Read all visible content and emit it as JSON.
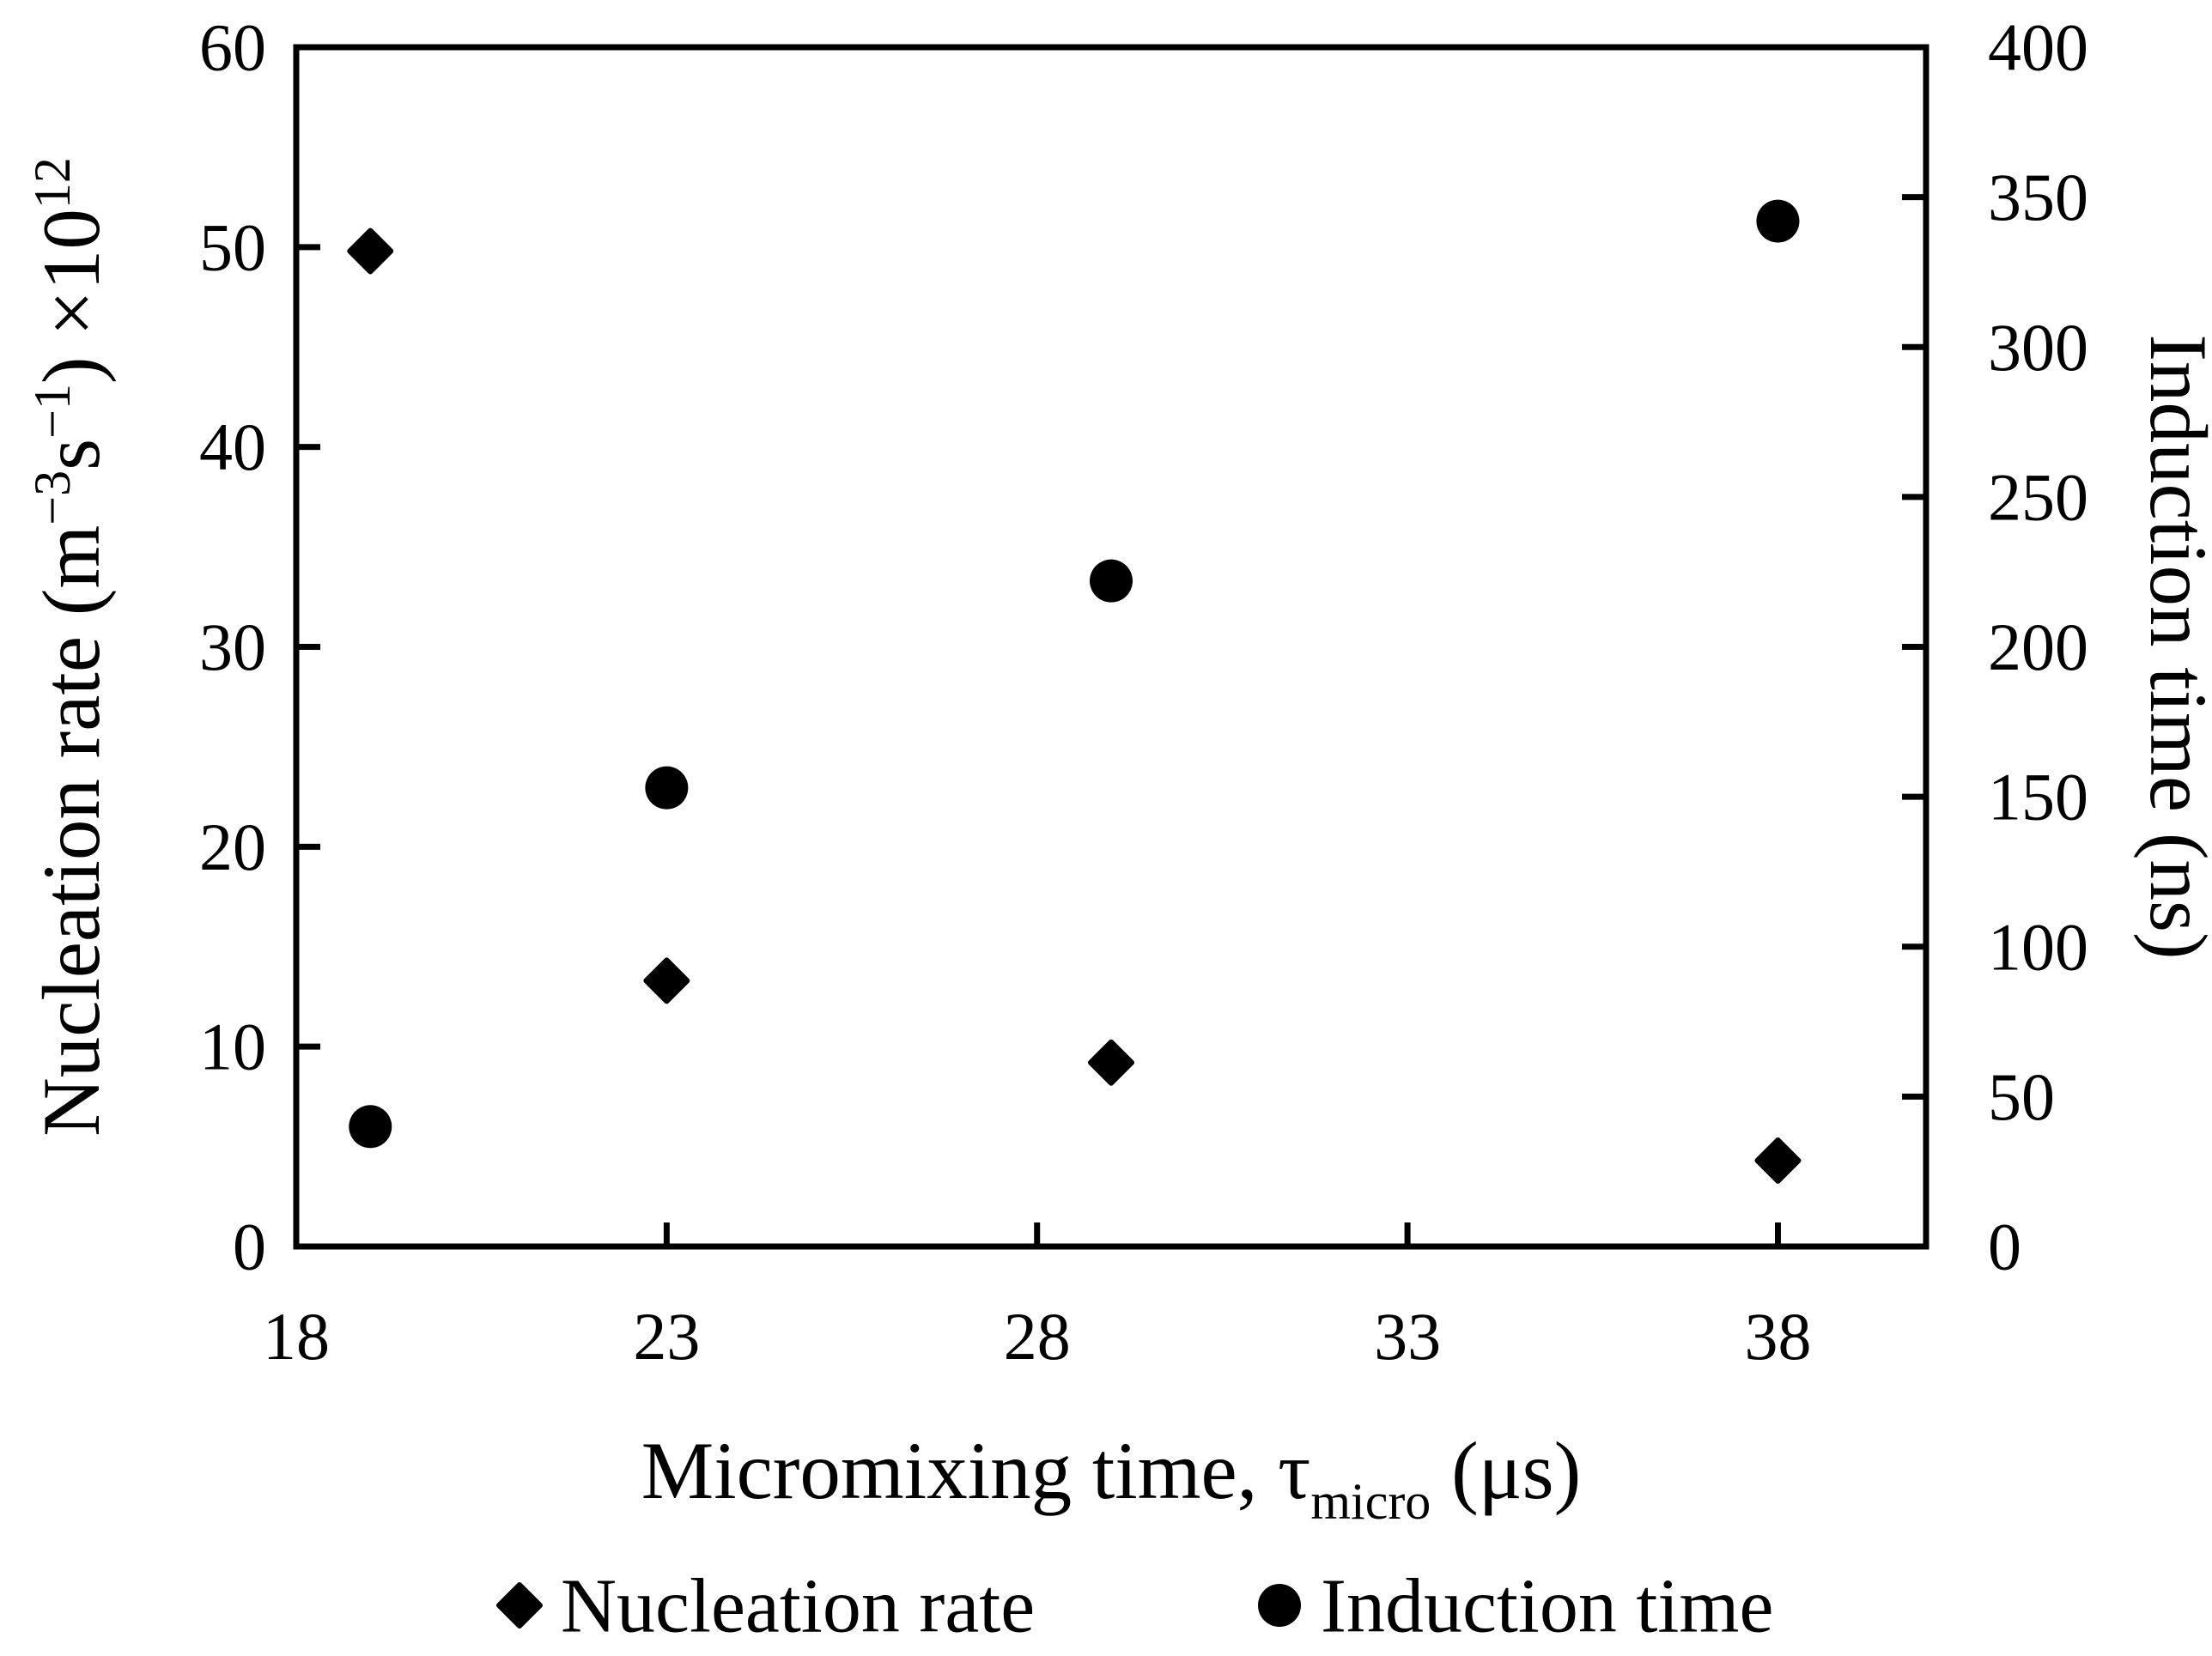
{
  "figure": {
    "background_color": "#ffffff",
    "ink_color": "#000000"
  },
  "chart_data": {
    "type": "scatter",
    "x_values": [
      19,
      23,
      29,
      38
    ],
    "series": [
      {
        "name": "Nucleation rate",
        "marker": "diamond",
        "axis": "left",
        "values": [
          49.8,
          13.3,
          9.2,
          4.3
        ]
      },
      {
        "name": "Induction time",
        "marker": "circle",
        "axis": "right",
        "values": [
          40,
          153,
          222,
          342
        ]
      }
    ],
    "x_axis": {
      "range": [
        18,
        40
      ],
      "ticks": [
        18,
        23,
        28,
        33,
        38
      ],
      "label_segments": [
        {
          "t": "Micromixing time, τ"
        },
        {
          "t": "micro",
          "sub": true
        },
        {
          "t": " (μs)"
        }
      ]
    },
    "left_axis": {
      "range": [
        0,
        60
      ],
      "ticks": [
        0,
        10,
        20,
        30,
        40,
        50,
        60
      ],
      "label_segments": [
        {
          "t": "Nucleation rate (m"
        },
        {
          "t": "−3",
          "sup": true
        },
        {
          "t": "s"
        },
        {
          "t": "−1",
          "sup": true
        },
        {
          "t": ") ×10"
        },
        {
          "t": "12",
          "sup": true
        }
      ]
    },
    "right_axis": {
      "range": [
        0,
        400
      ],
      "ticks": [
        0,
        50,
        100,
        150,
        200,
        250,
        300,
        350,
        400
      ],
      "label_segments": [
        {
          "t": "Induction time (ns)"
        }
      ]
    },
    "grid": false,
    "legend_position": "bottom",
    "legend": [
      {
        "label": "Nucleation rate",
        "marker": "diamond"
      },
      {
        "label": "Induction time",
        "marker": "circle"
      }
    ]
  }
}
